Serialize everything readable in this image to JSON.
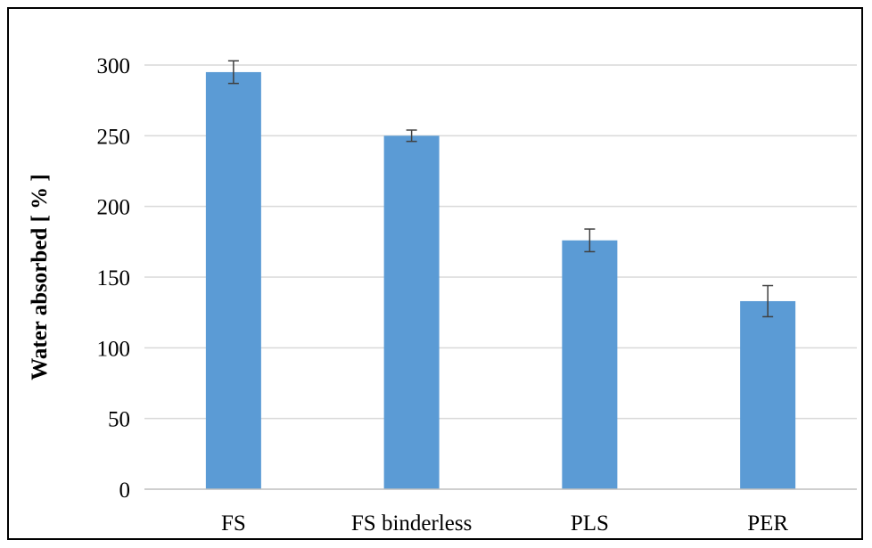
{
  "chart_data": {
    "type": "bar",
    "title": "",
    "xlabel": "",
    "ylabel": "Water absorbed [ % ]",
    "categories": [
      "FS",
      "FS binderless",
      "PLS",
      "PER"
    ],
    "values": [
      295,
      250,
      176,
      133
    ],
    "errors": [
      8,
      4,
      8,
      11
    ],
    "ylim": [
      0,
      300
    ],
    "yticks": [
      "0",
      "50",
      "100",
      "150",
      "200",
      "250",
      "300"
    ],
    "ytick_values": [
      0,
      50,
      100,
      150,
      200,
      250,
      300
    ],
    "grid": true,
    "legend": "none",
    "colors": {
      "bar": "#5b9bd5",
      "grid": "#d9d9d9",
      "axis": "#bfbfbf",
      "error": "#404040"
    }
  }
}
